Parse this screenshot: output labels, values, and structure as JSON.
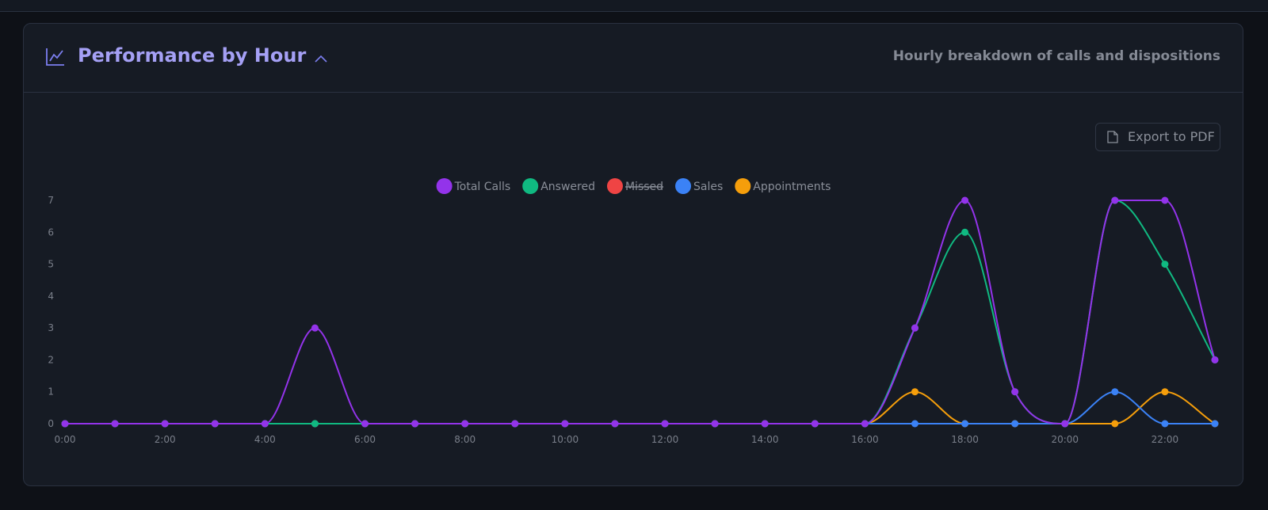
{
  "header": {
    "title": "Performance by Hour",
    "subtitle": "Hourly breakdown of calls and dispositions"
  },
  "export_button": "Export to PDF",
  "chart_data": {
    "type": "line",
    "categories": [
      "0:00",
      null,
      "2:00",
      null,
      "4:00",
      null,
      "6:00",
      null,
      "8:00",
      null,
      "10:00",
      null,
      "12:00",
      null,
      "14:00",
      null,
      "16:00",
      null,
      "18:00",
      null,
      "20:00",
      null,
      "22:00",
      null
    ],
    "series": [
      {
        "name": "Total Calls",
        "color": "#9333ea",
        "values": [
          0,
          0,
          0,
          0,
          0,
          3,
          0,
          0,
          0,
          0,
          0,
          0,
          0,
          0,
          0,
          0,
          0,
          3,
          7,
          1,
          0,
          7,
          7,
          2
        ]
      },
      {
        "name": "Answered",
        "color": "#10b981",
        "values": [
          0,
          0,
          0,
          0,
          0,
          0,
          0,
          0,
          0,
          0,
          0,
          0,
          0,
          0,
          0,
          0,
          0,
          3,
          6,
          1,
          0,
          7,
          5,
          2
        ]
      },
      {
        "name": "Missed",
        "color": "#ef4444",
        "hidden": true
      },
      {
        "name": "Sales",
        "color": "#3b82f6",
        "values": [
          0,
          0,
          0,
          0,
          0,
          0,
          0,
          0,
          0,
          0,
          0,
          0,
          0,
          0,
          0,
          0,
          0,
          0,
          0,
          0,
          0,
          1,
          0,
          0
        ]
      },
      {
        "name": "Appointments",
        "color": "#f59e0b",
        "values": [
          0,
          0,
          0,
          0,
          0,
          0,
          0,
          0,
          0,
          0,
          0,
          0,
          0,
          0,
          0,
          0,
          0,
          1,
          0,
          0,
          0,
          0,
          1,
          0
        ]
      }
    ],
    "ylim": [
      0,
      7
    ],
    "yticks": [
      0,
      1,
      2,
      3,
      4,
      5,
      6,
      7
    ],
    "legend": "top"
  }
}
